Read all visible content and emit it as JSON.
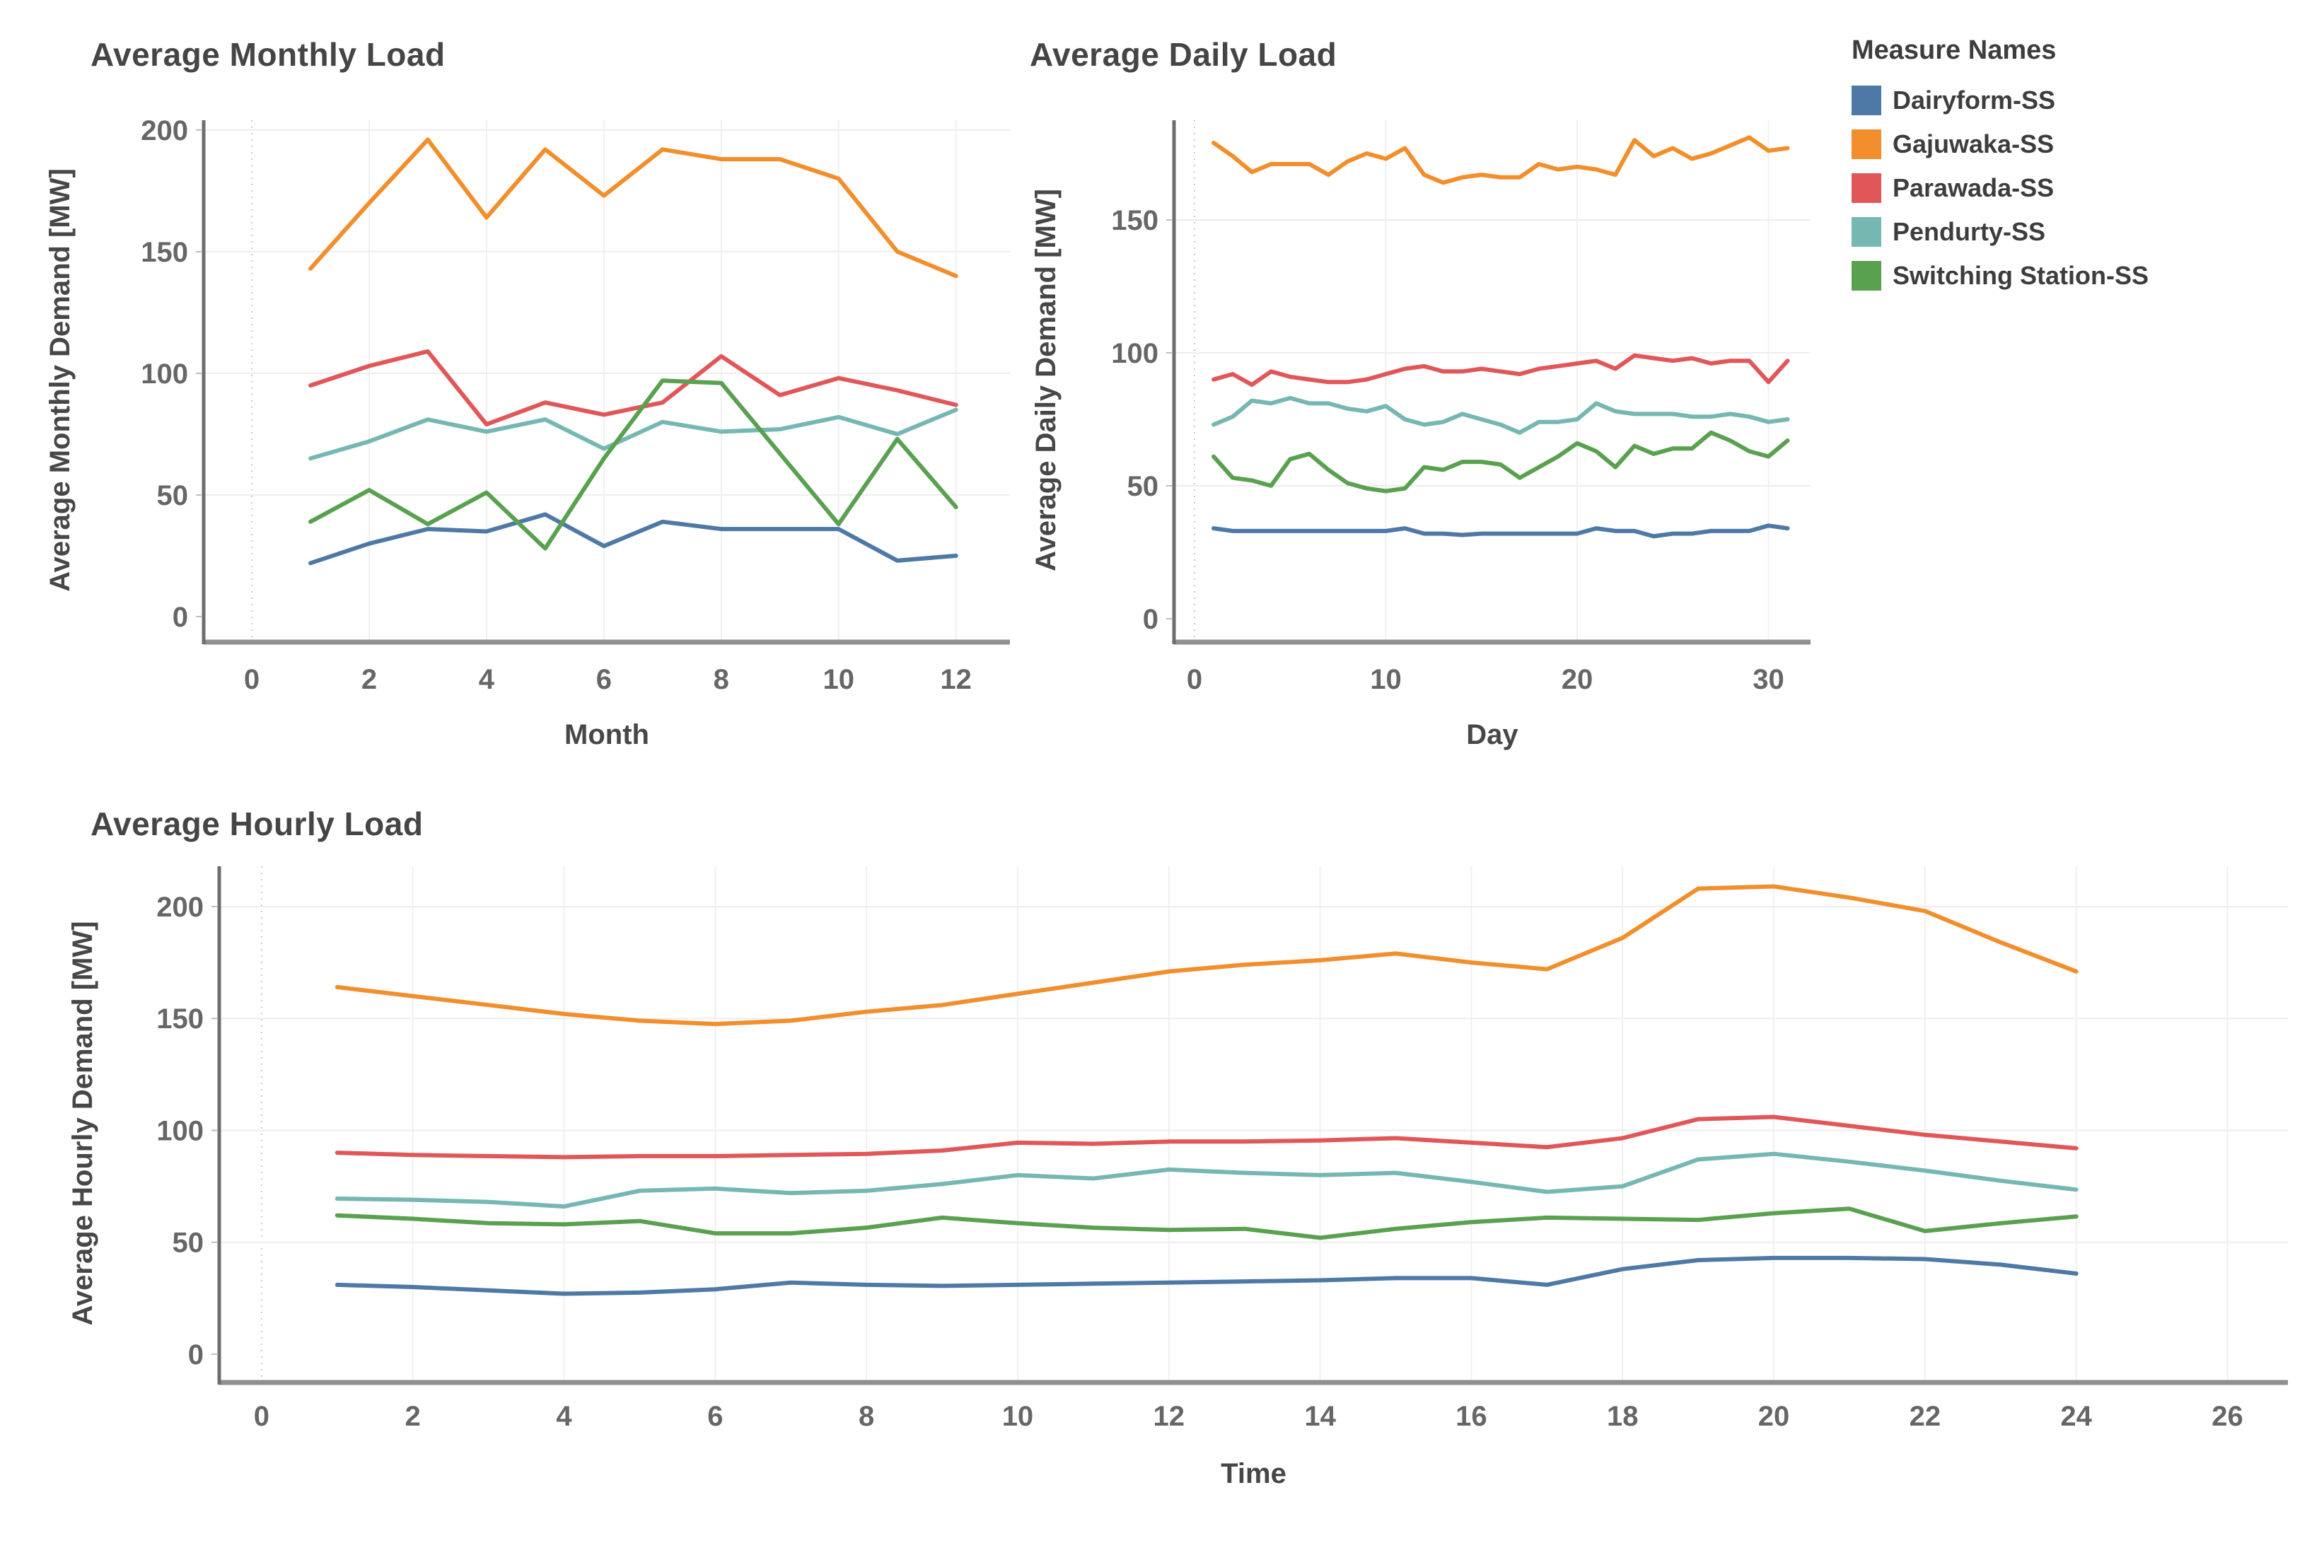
{
  "legend": {
    "title": "Measure Names",
    "items": [
      {
        "label": "Dairyform-SS",
        "color": "#4e79a7"
      },
      {
        "label": "Gajuwaka-SS",
        "color": "#f28e2b"
      },
      {
        "label": "Parawada-SS",
        "color": "#e15759"
      },
      {
        "label": "Pendurty-SS",
        "color": "#76b7b2"
      },
      {
        "label": "Switching Station-SS",
        "color": "#59a14f"
      }
    ],
    "position": "top-right"
  },
  "chart_data": [
    {
      "id": "monthly",
      "type": "line",
      "title": "Average Monthly Load",
      "xlabel": "Month",
      "ylabel": "Average Monthly Demand [MW]",
      "xticks": [
        0,
        2,
        4,
        6,
        8,
        10,
        12
      ],
      "yticks": [
        0,
        50,
        100,
        150,
        200
      ],
      "xlim": [
        -0.82,
        12.92
      ],
      "ylim": [
        -9.6,
        204
      ],
      "grid": true,
      "x": [
        1,
        2,
        3,
        4,
        5,
        6,
        7,
        8,
        9,
        10,
        11,
        12
      ],
      "series": [
        {
          "name": "Dairyform-SS",
          "color": "#4e79a7",
          "values": [
            22,
            30,
            36,
            35,
            42,
            29,
            39,
            36,
            36,
            36,
            23,
            25
          ]
        },
        {
          "name": "Gajuwaka-SS",
          "color": "#f28e2b",
          "values": [
            143,
            170,
            196,
            164,
            192,
            173,
            192,
            188,
            188,
            180,
            150,
            140
          ]
        },
        {
          "name": "Parawada-SS",
          "color": "#e15759",
          "values": [
            95,
            103,
            109,
            79,
            88,
            83,
            88,
            107,
            91,
            98,
            93,
            87
          ]
        },
        {
          "name": "Pendurty-SS",
          "color": "#76b7b2",
          "values": [
            65,
            72,
            81,
            76,
            81,
            69,
            80,
            76,
            77,
            82,
            75,
            85
          ]
        },
        {
          "name": "Switching Station-SS",
          "color": "#59a14f",
          "values": [
            39,
            52,
            38,
            51,
            28,
            65,
            97,
            96,
            67,
            38,
            73,
            45
          ]
        }
      ]
    },
    {
      "id": "daily",
      "type": "line",
      "title": "Average Daily Load",
      "xlabel": "Day",
      "ylabel": "Average Daily Demand [MW]",
      "xticks": [
        0,
        10,
        20,
        30
      ],
      "yticks": [
        0,
        50,
        100,
        150
      ],
      "xlim": [
        -1.07,
        32.2
      ],
      "ylim": [
        -8,
        187.5
      ],
      "grid": true,
      "x": [
        1,
        2,
        3,
        4,
        5,
        6,
        7,
        8,
        9,
        10,
        11,
        12,
        13,
        14,
        15,
        16,
        17,
        18,
        19,
        20,
        21,
        22,
        23,
        24,
        25,
        26,
        27,
        28,
        29,
        30,
        31
      ],
      "series": [
        {
          "name": "Dairyform-SS",
          "color": "#4e79a7",
          "values": [
            34,
            33,
            33,
            33,
            33,
            33,
            33,
            33,
            33,
            33,
            34,
            32,
            32,
            31.5,
            32,
            32,
            32,
            32,
            32,
            32,
            34,
            33,
            33,
            31,
            32,
            32,
            33,
            33,
            33,
            35,
            34
          ]
        },
        {
          "name": "Gajuwaka-SS",
          "color": "#f28e2b",
          "values": [
            179,
            174,
            168,
            171,
            171,
            171,
            167,
            172,
            175,
            173,
            177,
            167,
            164,
            166,
            167,
            166,
            166,
            171,
            169,
            170,
            169,
            167,
            180,
            174,
            177,
            173,
            175,
            178,
            181,
            176,
            177
          ]
        },
        {
          "name": "Parawada-SS",
          "color": "#e15759",
          "values": [
            90,
            92,
            88,
            93,
            91,
            90,
            89,
            89,
            90,
            92,
            94,
            95,
            93,
            93,
            94,
            93,
            92,
            94,
            95,
            96,
            97,
            94,
            99,
            98,
            97,
            98,
            96,
            97,
            97,
            89,
            97
          ]
        },
        {
          "name": "Pendurty-SS",
          "color": "#76b7b2",
          "values": [
            73,
            76,
            82,
            81,
            83,
            81,
            81,
            79,
            78,
            80,
            75,
            73,
            74,
            77,
            75,
            73,
            70,
            74,
            74,
            75,
            81,
            78,
            77,
            77,
            77,
            76,
            76,
            77,
            76,
            74,
            75
          ]
        },
        {
          "name": "Switching Station-SS",
          "color": "#59a14f",
          "values": [
            61,
            53,
            52,
            50,
            60,
            62,
            56,
            51,
            49,
            48,
            49,
            57,
            56,
            59,
            59,
            58,
            53,
            57,
            61,
            66,
            63,
            57,
            65,
            62,
            64,
            64,
            70,
            67,
            63,
            61,
            67
          ]
        }
      ]
    },
    {
      "id": "hourly",
      "type": "line",
      "title": "Average Hourly Load",
      "xlabel": "Time",
      "ylabel": "Average Hourly Demand [MW]",
      "xticks": [
        0,
        2,
        4,
        6,
        8,
        10,
        12,
        14,
        16,
        18,
        20,
        22,
        24,
        26
      ],
      "yticks": [
        0,
        50,
        100,
        150,
        200
      ],
      "xlim": [
        -0.56,
        26.8
      ],
      "ylim": [
        -11.7,
        218
      ],
      "grid": true,
      "x": [
        1,
        2,
        3,
        4,
        5,
        6,
        7,
        8,
        9,
        10,
        11,
        12,
        13,
        14,
        15,
        16,
        17,
        18,
        19,
        20,
        21,
        22,
        23,
        24
      ],
      "series": [
        {
          "name": "Dairyform-SS",
          "color": "#4e79a7",
          "values": [
            31,
            30,
            28.5,
            27,
            27.5,
            29,
            32,
            31,
            30.5,
            31,
            31.5,
            32,
            32.5,
            33,
            34,
            34,
            31,
            38,
            42,
            43,
            43,
            42.5,
            40,
            36
          ]
        },
        {
          "name": "Gajuwaka-SS",
          "color": "#f28e2b",
          "values": [
            164,
            160,
            156,
            152,
            149,
            147.5,
            149,
            153,
            156,
            161,
            166,
            171,
            174,
            176,
            179,
            175,
            172,
            186,
            208,
            209,
            204,
            198,
            184,
            171
          ]
        },
        {
          "name": "Parawada-SS",
          "color": "#e15759",
          "values": [
            90,
            89,
            88.5,
            88,
            88.5,
            88.5,
            89,
            89.5,
            91,
            94.5,
            94,
            95,
            95,
            95.5,
            96.5,
            94.5,
            92.5,
            96.5,
            105,
            106,
            102,
            98,
            95,
            92
          ]
        },
        {
          "name": "Pendurty-SS",
          "color": "#76b7b2",
          "values": [
            69.5,
            69,
            68,
            66,
            73,
            74,
            72,
            73,
            76,
            80,
            78.5,
            82.5,
            81,
            80,
            81,
            77,
            72.5,
            75,
            87,
            89.5,
            86,
            82,
            77.5,
            73.5
          ]
        },
        {
          "name": "Switching Station-SS",
          "color": "#59a14f",
          "values": [
            62,
            60.5,
            58.5,
            58,
            59.5,
            54,
            54,
            56.5,
            61,
            58.5,
            56.5,
            55.5,
            56,
            52,
            56,
            59,
            61,
            60.5,
            60,
            63,
            65,
            55,
            58.5,
            61.5
          ]
        }
      ]
    }
  ]
}
